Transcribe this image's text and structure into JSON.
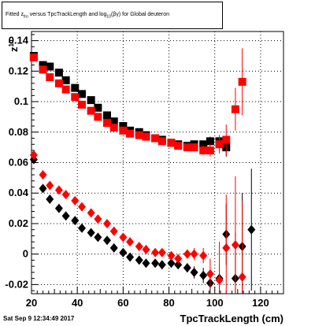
{
  "title": {
    "prefix": "Fitted  z",
    "sub1": "fro",
    "middle": " versus TpcTrackLength and log",
    "sub2": "10",
    "suffix": "(βγ) for Global deuteron"
  },
  "footer": "Sat Sep  9 12:34:49 2017",
  "chart_data": {
    "type": "scatter",
    "xlabel": "TpcTrackLength (cm)",
    "ylabel": "z",
    "ylabel_superscript": "10",
    "xlim": [
      20,
      130
    ],
    "ylim": [
      -0.026,
      0.146
    ],
    "x_ticks": [
      20,
      40,
      60,
      80,
      100,
      120
    ],
    "y_ticks": [
      -0.02,
      0,
      0.02,
      0.04,
      0.06,
      0.08,
      0.1,
      0.12,
      0.14
    ],
    "y_tick_labels": [
      "-0.02",
      "0",
      "0.02",
      "0.04",
      "0.06",
      "0.08",
      "0.1",
      "0.12",
      "0.14"
    ],
    "grid": true,
    "series": [
      {
        "marker": "square",
        "color": "#000000",
        "points": [
          [
            21,
            0.13,
            0.001
          ],
          [
            25,
            0.124,
            0.001
          ],
          [
            28,
            0.123,
            0.001
          ],
          [
            32,
            0.119,
            0.001
          ],
          [
            35,
            0.114,
            0.001
          ],
          [
            39,
            0.109,
            0.001
          ],
          [
            42,
            0.105,
            0.001
          ],
          [
            46,
            0.101,
            0.001
          ],
          [
            49,
            0.096,
            0.001
          ],
          [
            53,
            0.091,
            0.001
          ],
          [
            56,
            0.087,
            0.001
          ],
          [
            60,
            0.084,
            0.001
          ],
          [
            63,
            0.081,
            0.001
          ],
          [
            67,
            0.08,
            0.001
          ],
          [
            70,
            0.078,
            0.001
          ],
          [
            74,
            0.076,
            0.001
          ],
          [
            77,
            0.075,
            0.001
          ],
          [
            81,
            0.073,
            0.001
          ],
          [
            84,
            0.072,
            0.002
          ],
          [
            88,
            0.071,
            0.002
          ],
          [
            91,
            0.072,
            0.002
          ],
          [
            95,
            0.072,
            0.002
          ],
          [
            98,
            0.074,
            0.003
          ],
          [
            102,
            0.074,
            0.004
          ],
          [
            105,
            0.07,
            0.006
          ]
        ]
      },
      {
        "marker": "square",
        "color": "#ff0000",
        "points": [
          [
            21,
            0.129,
            0.001
          ],
          [
            25,
            0.121,
            0.001
          ],
          [
            28,
            0.116,
            0.001
          ],
          [
            32,
            0.112,
            0.001
          ],
          [
            35,
            0.108,
            0.001
          ],
          [
            39,
            0.103,
            0.001
          ],
          [
            42,
            0.098,
            0.001
          ],
          [
            46,
            0.094,
            0.001
          ],
          [
            49,
            0.09,
            0.001
          ],
          [
            53,
            0.086,
            0.001
          ],
          [
            56,
            0.083,
            0.001
          ],
          [
            60,
            0.081,
            0.001
          ],
          [
            63,
            0.079,
            0.001
          ],
          [
            67,
            0.078,
            0.001
          ],
          [
            70,
            0.077,
            0.001
          ],
          [
            74,
            0.076,
            0.001
          ],
          [
            77,
            0.074,
            0.001
          ],
          [
            81,
            0.073,
            0.002
          ],
          [
            84,
            0.071,
            0.002
          ],
          [
            88,
            0.07,
            0.002
          ],
          [
            91,
            0.07,
            0.002
          ],
          [
            95,
            0.068,
            0.003
          ],
          [
            98,
            0.068,
            0.004
          ],
          [
            102,
            0.072,
            0.006
          ],
          [
            105,
            0.075,
            0.01
          ],
          [
            109,
            0.095,
            0.014
          ],
          [
            112,
            0.113,
            0.022
          ]
        ]
      },
      {
        "marker": "diamond",
        "color": "#000000",
        "points": [
          [
            21,
            0.062,
            0.001
          ],
          [
            25,
            0.043,
            0.001
          ],
          [
            28,
            0.036,
            0.001
          ],
          [
            32,
            0.03,
            0.001
          ],
          [
            35,
            0.025,
            0.001
          ],
          [
            39,
            0.022,
            0.001
          ],
          [
            42,
            0.017,
            0.001
          ],
          [
            46,
            0.014,
            0.001
          ],
          [
            49,
            0.011,
            0.001
          ],
          [
            53,
            0.009,
            0.001
          ],
          [
            56,
            0.004,
            0.001
          ],
          [
            60,
            0.001,
            0.001
          ],
          [
            63,
            -0.002,
            0.001
          ],
          [
            67,
            -0.004,
            0.001
          ],
          [
            70,
            -0.006,
            0.001
          ],
          [
            74,
            -0.006,
            0.001
          ],
          [
            77,
            -0.007,
            0.002
          ],
          [
            81,
            -0.006,
            0.002
          ],
          [
            84,
            -0.007,
            0.002
          ],
          [
            88,
            -0.009,
            0.003
          ],
          [
            91,
            -0.012,
            0.004
          ],
          [
            95,
            -0.014,
            0.005
          ],
          [
            98,
            -0.019,
            0.007
          ],
          [
            102,
            -0.016,
            0.01
          ],
          [
            105,
            0.013,
            0.02
          ],
          [
            109,
            -0.016,
            0.03
          ],
          [
            112,
            0.005,
            0.035
          ],
          [
            116,
            0.016,
            0.04
          ]
        ]
      },
      {
        "marker": "diamond",
        "color": "#ff0000",
        "points": [
          [
            21,
            0.065,
            0.001
          ],
          [
            25,
            0.052,
            0.001
          ],
          [
            28,
            0.045,
            0.001
          ],
          [
            32,
            0.042,
            0.001
          ],
          [
            35,
            0.039,
            0.001
          ],
          [
            39,
            0.035,
            0.001
          ],
          [
            42,
            0.031,
            0.001
          ],
          [
            46,
            0.027,
            0.001
          ],
          [
            49,
            0.023,
            0.001
          ],
          [
            53,
            0.02,
            0.001
          ],
          [
            56,
            0.015,
            0.001
          ],
          [
            60,
            0.011,
            0.001
          ],
          [
            63,
            0.008,
            0.001
          ],
          [
            67,
            0.005,
            0.001
          ],
          [
            70,
            0.003,
            0.001
          ],
          [
            74,
            0.001,
            0.001
          ],
          [
            77,
            0.001,
            0.002
          ],
          [
            81,
            -0.001,
            0.002
          ],
          [
            84,
            -0.003,
            0.002
          ],
          [
            88,
            0.0,
            0.003
          ],
          [
            91,
            0.0,
            0.004
          ],
          [
            95,
            -0.001,
            0.005
          ],
          [
            98,
            -0.013,
            0.01
          ],
          [
            102,
            -0.017,
            0.025
          ],
          [
            105,
            0.004,
            0.035
          ],
          [
            109,
            0.006,
            0.045
          ],
          [
            112,
            -0.015,
            0.05
          ]
        ]
      }
    ]
  }
}
